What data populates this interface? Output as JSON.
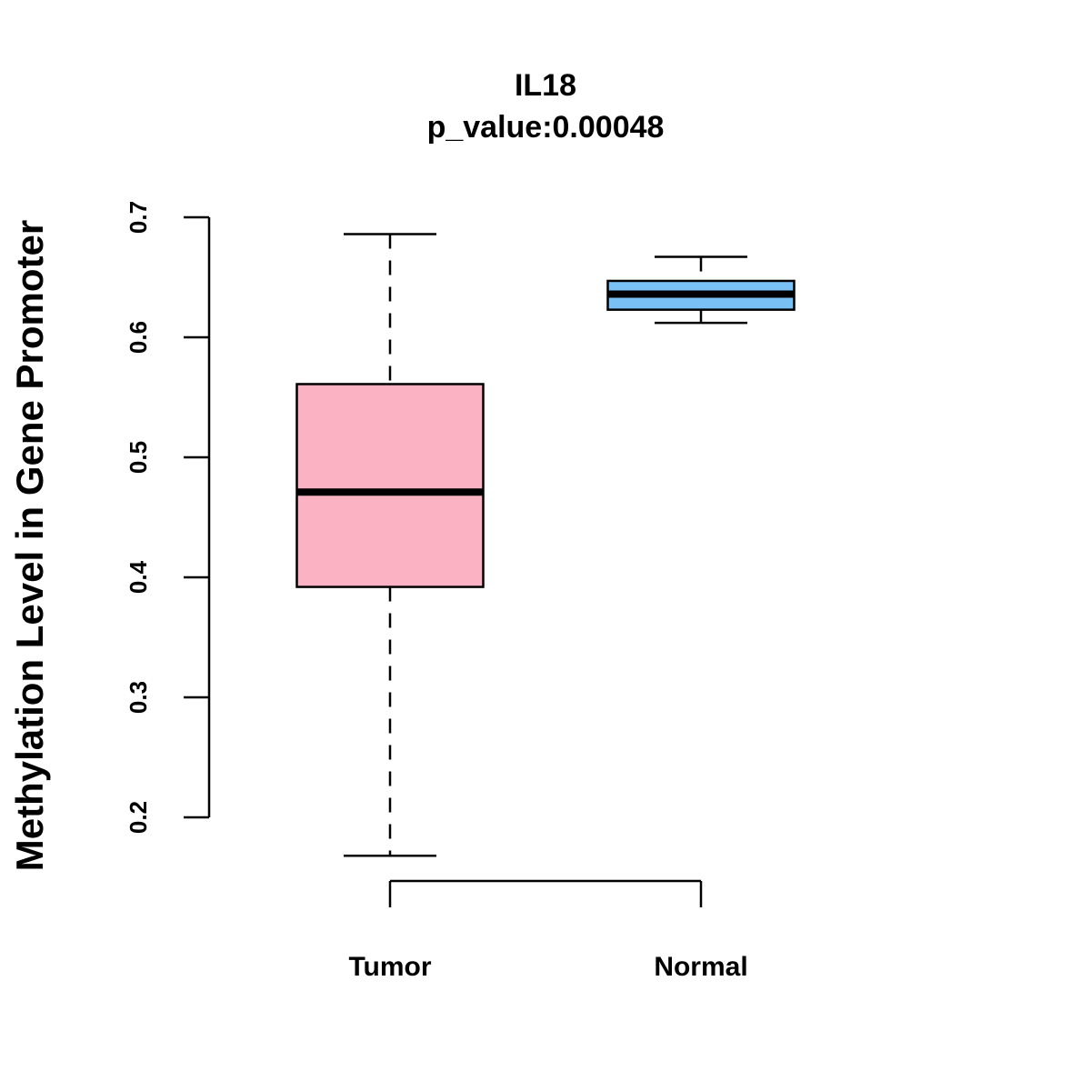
{
  "chart_data": {
    "type": "boxplot",
    "title": "IL18",
    "subtitle": "p_value:0.00048",
    "xlabel": "",
    "ylabel": "Methylation Level in Gene Promoter",
    "ylim": [
      0.2,
      0.7
    ],
    "yticks": [
      "0.2",
      "0.3",
      "0.4",
      "0.5",
      "0.6",
      "0.7"
    ],
    "ytick_values": [
      0.2,
      0.3,
      0.4,
      0.5,
      0.6,
      0.7
    ],
    "categories": [
      "Tumor",
      "Normal"
    ],
    "series": [
      {
        "name": "Tumor",
        "color": "#FBB3C4",
        "min": 0.168,
        "q1": 0.392,
        "median": 0.471,
        "q3": 0.561,
        "max": 0.686
      },
      {
        "name": "Normal",
        "color": "#79C0F5",
        "min": 0.612,
        "q1": 0.623,
        "median": 0.636,
        "q3": 0.647,
        "max": 0.667
      }
    ],
    "grid": false
  }
}
